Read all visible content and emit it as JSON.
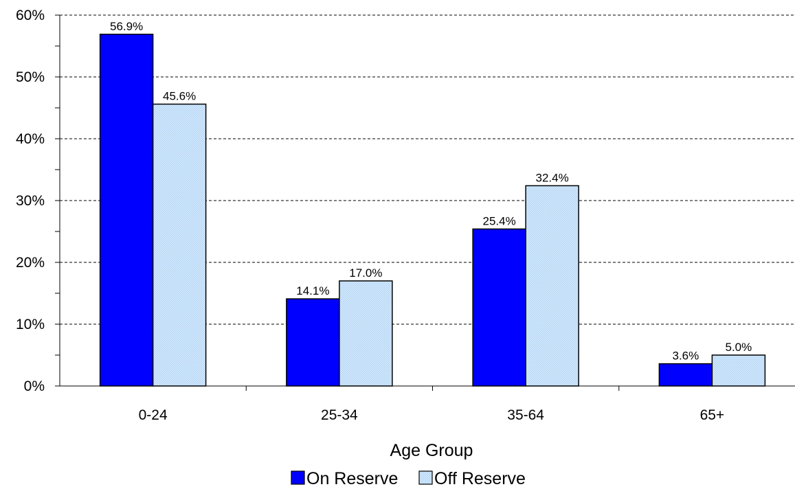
{
  "chart_data": {
    "type": "bar",
    "categories": [
      "0-24",
      "25-34",
      "35-64",
      "65+"
    ],
    "series": [
      {
        "name": "On Reserve",
        "values": [
          56.9,
          14.1,
          25.4,
          3.6
        ],
        "labels": [
          "56.9%",
          "14.1%",
          "25.4%",
          "3.6%"
        ],
        "color": "#0000ff"
      },
      {
        "name": "Off Reserve",
        "values": [
          45.6,
          17.0,
          32.4,
          5.0
        ],
        "labels": [
          "45.6%",
          "17.0%",
          "32.4%",
          "5.0%"
        ],
        "color": "#cce6ff",
        "pattern": "hatched"
      }
    ],
    "xlabel": "Age Group",
    "ylabel": "",
    "ylim": [
      0,
      60
    ],
    "yticks": [
      0,
      10,
      20,
      30,
      40,
      50,
      60
    ],
    "ytick_labels": [
      "0%",
      "10%",
      "20%",
      "30%",
      "40%",
      "50%",
      "60%"
    ],
    "grid": "horizontal-dashed",
    "legend_position": "bottom-center"
  }
}
